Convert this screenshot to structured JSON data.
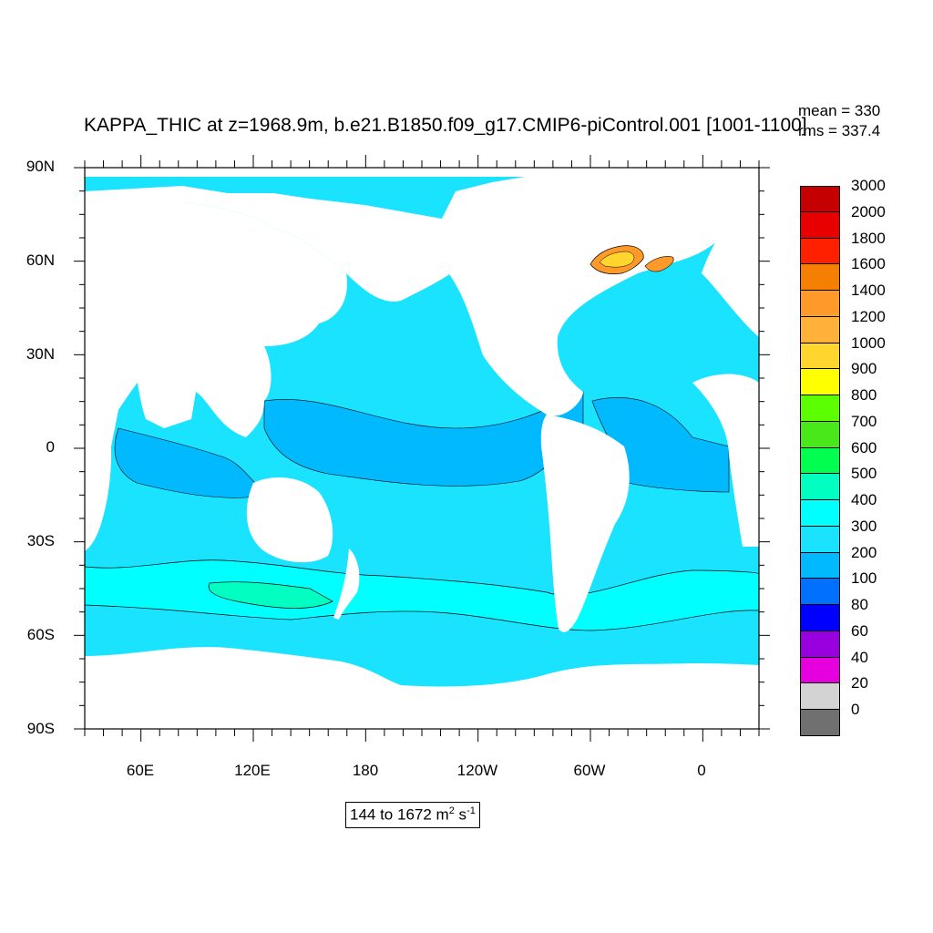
{
  "title": "KAPPA_THIC at z=1968.9m, b.e21.B1850.f09_g17.CMIP6-piControl.001 [1001-1100]",
  "stats": {
    "mean": "mean = 330",
    "rms": "rms = 337.4"
  },
  "axes": {
    "lat_labels": [
      "90N",
      "60N",
      "30N",
      "0",
      "30S",
      "60S",
      "90S"
    ],
    "lon_labels": [
      "60E",
      "120E",
      "180",
      "120W",
      "60W",
      "0"
    ]
  },
  "range_label": {
    "prefix": "144 to 1672 m",
    "exp1": "2",
    "mid": " s",
    "exp2": "-1"
  },
  "colorbar": {
    "labels": [
      "3000",
      "2000",
      "1800",
      "1600",
      "1400",
      "1200",
      "1000",
      "900",
      "800",
      "700",
      "600",
      "500",
      "400",
      "300",
      "200",
      "100",
      "80",
      "60",
      "40",
      "20",
      "0"
    ],
    "colors": [
      "#c40000",
      "#e80000",
      "#ff2000",
      "#f57f00",
      "#ff9a2a",
      "#ffb13a",
      "#ffd52e",
      "#ffff00",
      "#5cff00",
      "#48e81a",
      "#00ff4e",
      "#00ffc0",
      "#00ffff",
      "#1ae3ff",
      "#00b9ff",
      "#0070ff",
      "#0000ff",
      "#9800e0",
      "#e600e0",
      "#d3d3d3",
      "#707070"
    ]
  },
  "map_colors": {
    "ocean": "#1ae3ff",
    "ocean_low": "#00b9ff",
    "ocean_high": "#00ffc0",
    "ocean_higher": "#00ffff",
    "land": "#ffffff"
  }
}
